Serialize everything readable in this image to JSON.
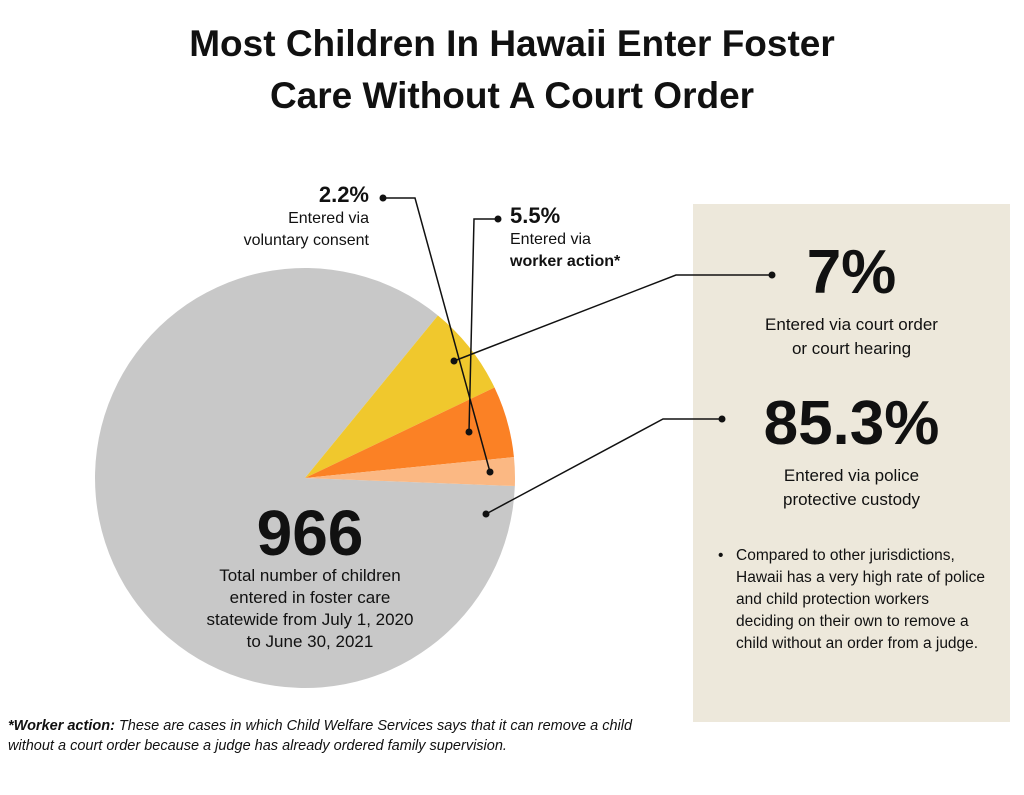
{
  "title_lines": [
    "Most Children In Hawaii Enter Foster",
    "Care Without A Court Order"
  ],
  "colors": {
    "police": "#c8c8c8",
    "court": "#f0c82d",
    "worker": "#fb8125",
    "voluntary": "#fbb883",
    "panel": "#ede8db",
    "leader": "#111111"
  },
  "chart_data": {
    "type": "pie",
    "slices": [
      {
        "label": "Entered via police protective custody",
        "value": 85.3,
        "color_key": "police"
      },
      {
        "label": "Entered via court order or court hearing",
        "value": 7,
        "color_key": "court"
      },
      {
        "label": "Entered via worker action*",
        "value": 5.5,
        "color_key": "worker"
      },
      {
        "label": "Entered via voluntary consent",
        "value": 2.2,
        "color_key": "voluntary"
      }
    ]
  },
  "labels": {
    "voluntary": {
      "pct": "2.2%",
      "line1": "Entered via",
      "line2": "voluntary consent"
    },
    "worker": {
      "pct": "5.5%",
      "line1": "Entered via",
      "line2": "worker action*"
    },
    "court": {
      "pct": "7%",
      "line1": "Entered via court order",
      "line2": "or court hearing"
    },
    "police": {
      "pct": "85.3%",
      "line1": "Entered via police",
      "line2": "protective custody"
    }
  },
  "total": {
    "number": "966",
    "lines": [
      "Total number of children",
      "entered in foster care",
      "statewide from July 1, 2020",
      "to June 30, 2021"
    ]
  },
  "note": "Compared to other jurisdictions, Hawaii has a very high rate of police and child protection workers deciding on their own to remove a child without an order from a judge.",
  "footnote": {
    "lead": "*Worker action:",
    "text": " These are cases in which Child Welfare Services says that it can remove a child without a court order because a judge has already ordered family supervision."
  }
}
